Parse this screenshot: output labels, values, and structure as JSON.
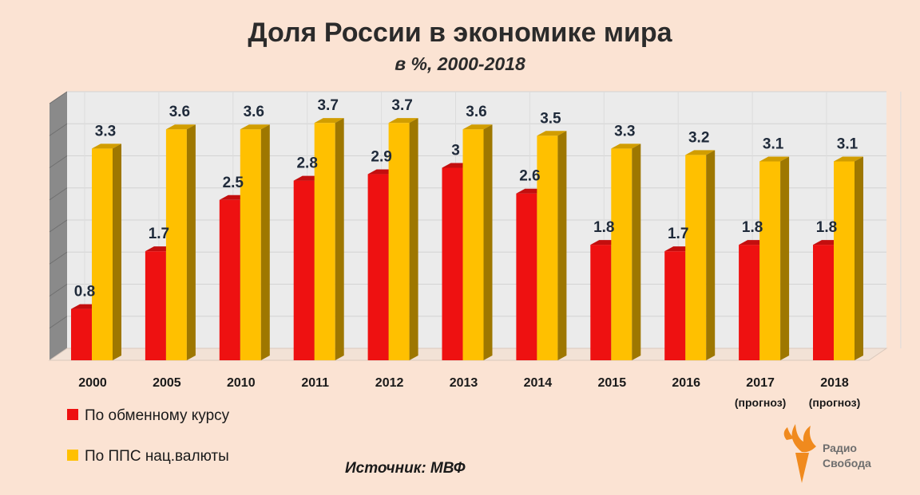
{
  "chart_data": {
    "type": "bar",
    "title": "Доля России в экономике мира",
    "subtitle": "в %, 2000-2018",
    "categories": [
      "2000",
      "2005",
      "2010",
      "2011",
      "2012",
      "2013",
      "2014",
      "2015",
      "2016",
      "2017",
      "2018"
    ],
    "category_notes": [
      "",
      "",
      "",
      "",
      "",
      "",
      "",
      "",
      "",
      "(прогноз)",
      "(прогноз)"
    ],
    "series": [
      {
        "name": "По обменному курсу",
        "color": "#ee1111",
        "values": [
          0.8,
          1.7,
          2.5,
          2.8,
          2.9,
          3,
          2.6,
          1.8,
          1.7,
          1.8,
          1.8
        ],
        "labels": [
          "0.8",
          "1.7",
          "2.5",
          "2.8",
          "2.9",
          "3",
          "2.6",
          "1.8",
          "1.7",
          "1.8",
          "1.8"
        ]
      },
      {
        "name": "По ППС нац.валюты",
        "color": "#ffc000",
        "values": [
          3.3,
          3.6,
          3.6,
          3.7,
          3.7,
          3.6,
          3.5,
          3.3,
          3.2,
          3.1,
          3.1
        ],
        "labels": [
          "3.3",
          "3.6",
          "3.6",
          "3.7",
          "3.7",
          "3.6",
          "3.5",
          "3.3",
          "3.2",
          "3.1",
          "3.1"
        ]
      }
    ],
    "ylim": [
      0,
      4
    ],
    "grid": true,
    "legend_position": "bottom-left",
    "source": "Источник:  МВФ"
  },
  "logo": {
    "line1": "Радио",
    "line2": "Свобода",
    "color": "#f08a1e"
  }
}
